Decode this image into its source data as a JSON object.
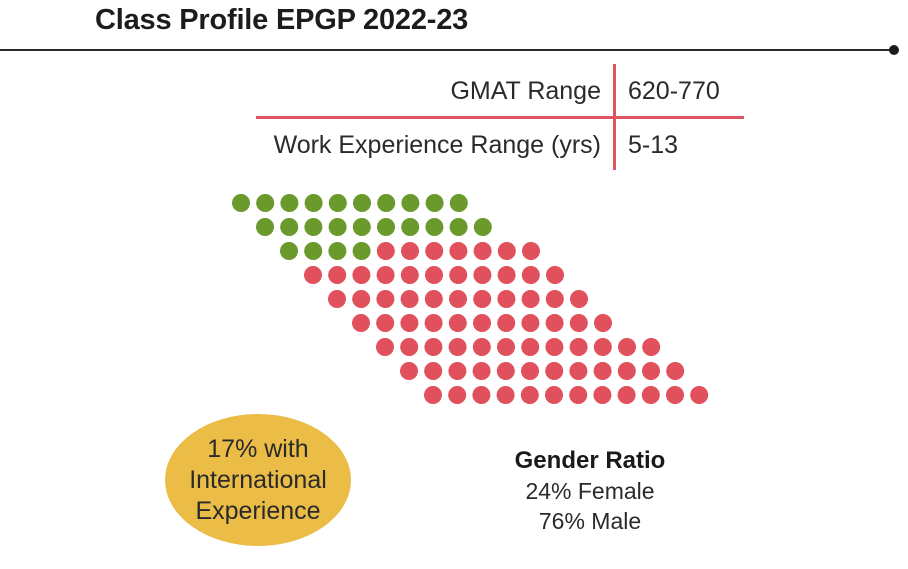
{
  "title": "Class Profile EPGP 2022-23",
  "stats": [
    {
      "label": "GMAT Range",
      "value": "620-770"
    },
    {
      "label": "Work Experience Range (yrs)",
      "value": "5-13"
    }
  ],
  "international": {
    "lines": [
      "17% with",
      "International",
      "Experience"
    ],
    "color": "#ebbd47"
  },
  "gender": {
    "title": "Gender Ratio",
    "female": "24% Female",
    "male": "76% Male",
    "female_count": 24,
    "male_count": 76,
    "female_color": "#6a9a2c",
    "male_color": "#e0505d"
  },
  "colors": {
    "accent": "#df5564",
    "text": "#1c1c1c"
  }
}
